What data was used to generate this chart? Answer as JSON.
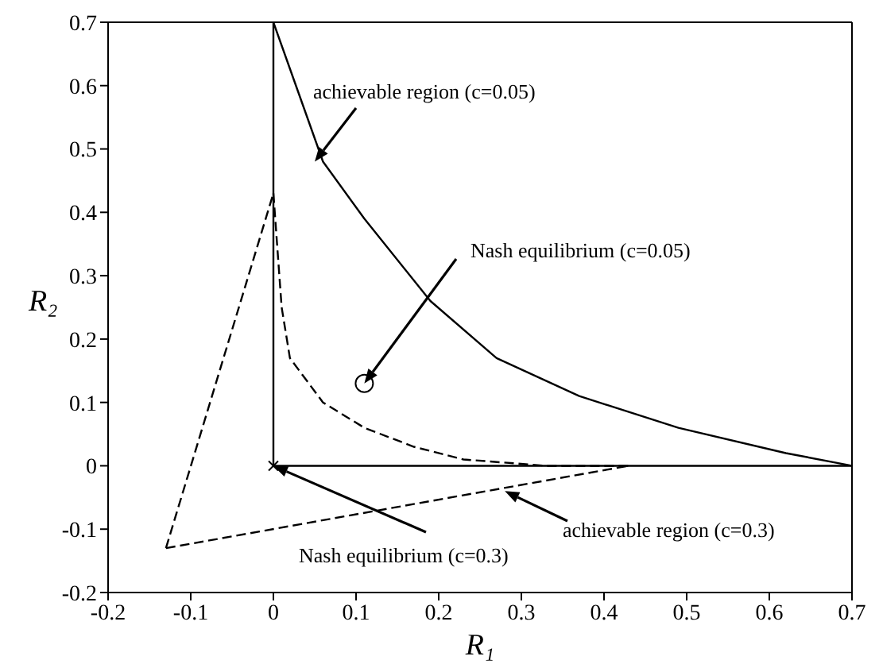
{
  "chart_data": {
    "type": "line",
    "xlabel": "R₁",
    "ylabel": "R₂",
    "xlim": [
      -0.2,
      0.7
    ],
    "ylim": [
      -0.2,
      0.7
    ],
    "xticks": [
      -0.2,
      -0.1,
      0,
      0.1,
      0.2,
      0.3,
      0.4,
      0.5,
      0.6,
      0.7
    ],
    "yticks": [
      -0.2,
      -0.1,
      0,
      0.1,
      0.2,
      0.3,
      0.4,
      0.5,
      0.6,
      0.7
    ],
    "series": [
      {
        "color": "#000000",
        "line_style": "solid",
        "x": [
          0,
          0.03,
          0.06,
          0.11,
          0.19,
          0.27,
          0.37,
          0.49,
          0.62,
          0.7
        ],
        "values": [
          0.7,
          0.59,
          0.48,
          0.39,
          0.26,
          0.17,
          0.11,
          0.06,
          0.02,
          0
        ]
      },
      {
        "color": "#000000",
        "line_style": "solid",
        "x": [
          0,
          0
        ],
        "values": [
          0,
          0.7
        ]
      },
      {
        "color": "#000000",
        "line_style": "solid",
        "x": [
          0,
          0.7
        ],
        "values": [
          0,
          0
        ]
      },
      {
        "color": "#000000",
        "line_style": "dashed",
        "x": [
          -0.13,
          0
        ],
        "values": [
          -0.13,
          0.43
        ]
      },
      {
        "color": "#000000",
        "line_style": "dashed",
        "x": [
          -0.13,
          0.43
        ],
        "values": [
          -0.13,
          0
        ]
      },
      {
        "color": "#000000",
        "line_style": "dashed",
        "x": [
          0,
          0.01,
          0.02,
          0.06,
          0.11,
          0.17,
          0.23,
          0.33,
          0.43
        ],
        "values": [
          0.43,
          0.25,
          0.17,
          0.1,
          0.06,
          0.03,
          0.01,
          0,
          0
        ]
      },
      {
        "type": "scatter",
        "color": "#000000",
        "marker": "circle",
        "x": [
          0.11
        ],
        "values": [
          0.13
        ]
      },
      {
        "type": "scatter",
        "color": "#000000",
        "marker": "cross",
        "x": [
          0
        ],
        "values": [
          0
        ]
      }
    ],
    "annotations": [
      {
        "text": "achievable region (c=0.05)",
        "x": 0.05,
        "y": 0.48
      },
      {
        "text": "Nash equilibrium (c=0.05)",
        "x": 0.11,
        "y": 0.13
      },
      {
        "text": "Nash equilibrium (c=0.3)",
        "x": 0,
        "y": 0
      },
      {
        "text": "achievable region (c=0.3)",
        "x": 0.28,
        "y": -0.04
      }
    ]
  }
}
